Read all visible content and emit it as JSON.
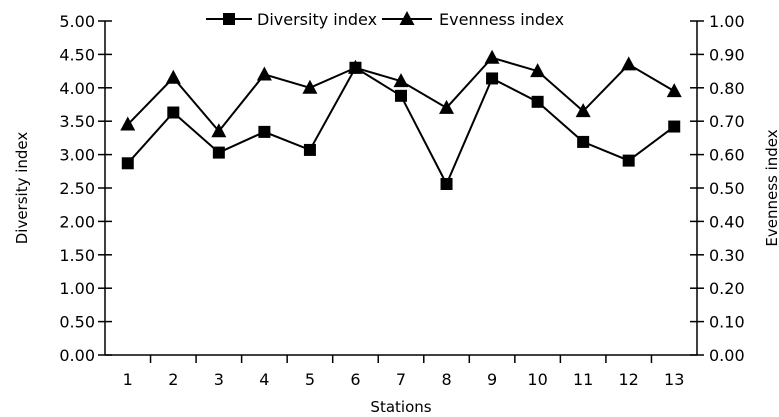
{
  "chart_data": {
    "type": "line",
    "categories": [
      "1",
      "2",
      "3",
      "4",
      "5",
      "6",
      "7",
      "8",
      "9",
      "10",
      "11",
      "12",
      "13"
    ],
    "xlabel": "Stations",
    "ylabel": "Diversity index",
    "y2label": "Evenness index",
    "ylim": [
      0,
      5
    ],
    "y2lim": [
      0,
      1
    ],
    "yticks": [
      "0.00",
      "0.50",
      "1.00",
      "1.50",
      "2.00",
      "2.50",
      "3.00",
      "3.50",
      "4.00",
      "4.50",
      "5.00"
    ],
    "y2ticks": [
      "0.00",
      "0.10",
      "0.20",
      "0.30",
      "0.40",
      "0.50",
      "0.60",
      "0.70",
      "0.80",
      "0.90",
      "1.00"
    ],
    "grid": false,
    "legend_position": "top",
    "series": [
      {
        "name": "Diversity index",
        "axis": "left",
        "marker": "square",
        "values": [
          2.87,
          3.63,
          3.03,
          3.34,
          3.07,
          4.3,
          3.88,
          2.56,
          4.14,
          3.79,
          3.19,
          2.91,
          3.42
        ]
      },
      {
        "name": "Evenness index",
        "axis": "right",
        "marker": "triangle",
        "values": [
          0.69,
          0.83,
          0.67,
          0.84,
          0.8,
          0.86,
          0.82,
          0.74,
          0.89,
          0.85,
          0.73,
          0.87,
          0.79
        ]
      }
    ]
  }
}
